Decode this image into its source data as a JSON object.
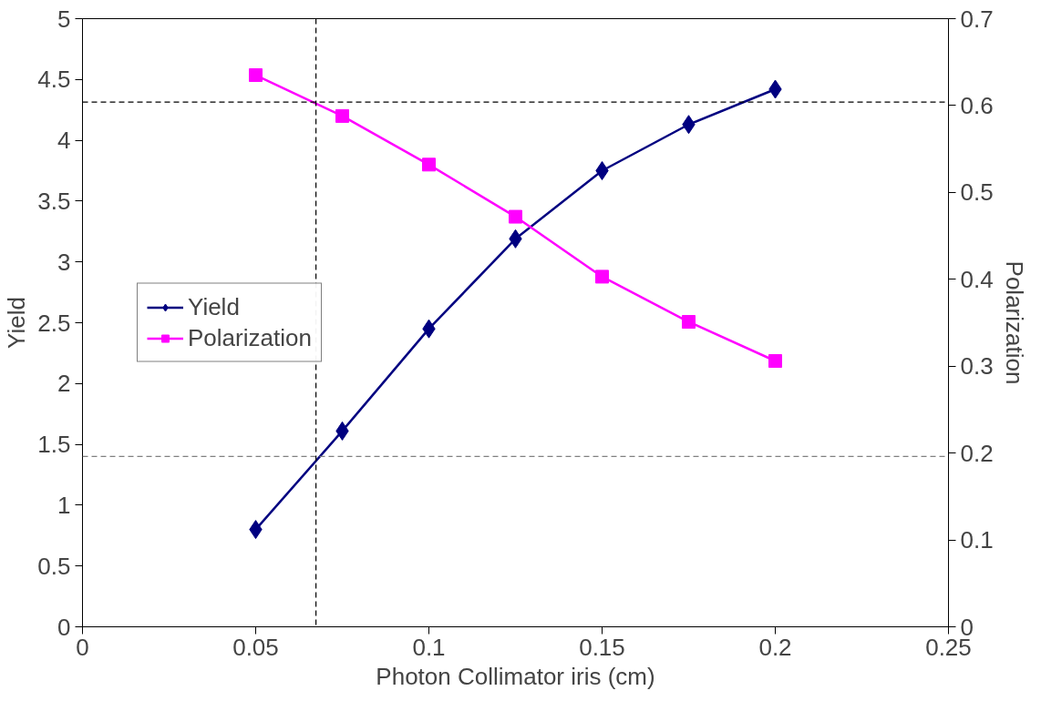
{
  "chart_data": {
    "type": "line",
    "xlabel": "Photon Collimator iris (cm)",
    "ylabel": "Yield",
    "y2label": "Polarization",
    "x": [
      0.05,
      0.075,
      0.1,
      0.125,
      0.15,
      0.175,
      0.2
    ],
    "series": [
      {
        "name": "Yield",
        "color": "#000080",
        "marker": "diamond",
        "values": [
          0.8,
          1.61,
          2.45,
          3.19,
          3.75,
          4.13,
          4.42
        ]
      },
      {
        "name": "Polarization",
        "color": "#ff00ff",
        "marker": "square",
        "axis": "y2",
        "values": [
          0.635,
          0.588,
          0.532,
          0.472,
          0.403,
          0.351,
          0.306
        ]
      }
    ],
    "xlim": [
      0,
      0.25
    ],
    "xticks": [
      0,
      0.05,
      0.1,
      0.15,
      0.2,
      0.25
    ],
    "ylim": [
      0,
      5
    ],
    "yticks": [
      0,
      0.5,
      1,
      1.5,
      2,
      2.5,
      3,
      3.5,
      4,
      4.5,
      5
    ],
    "y2lim": [
      0,
      0.7
    ],
    "y2ticks": [
      0,
      0.1,
      0.2,
      0.3,
      0.4,
      0.5,
      0.6,
      0.7
    ],
    "ref_lines": [
      {
        "axis": "y",
        "value": 1.4,
        "color": "#808080",
        "line_style": "dashed"
      },
      {
        "axis": "x",
        "value": 0.0674,
        "color": "#000000",
        "line_style": "dashed"
      },
      {
        "axis": "y2",
        "value": 0.604,
        "color": "#000000",
        "line_style": "dashed"
      }
    ],
    "grid": false,
    "legend": "left",
    "line_style": "solid"
  }
}
